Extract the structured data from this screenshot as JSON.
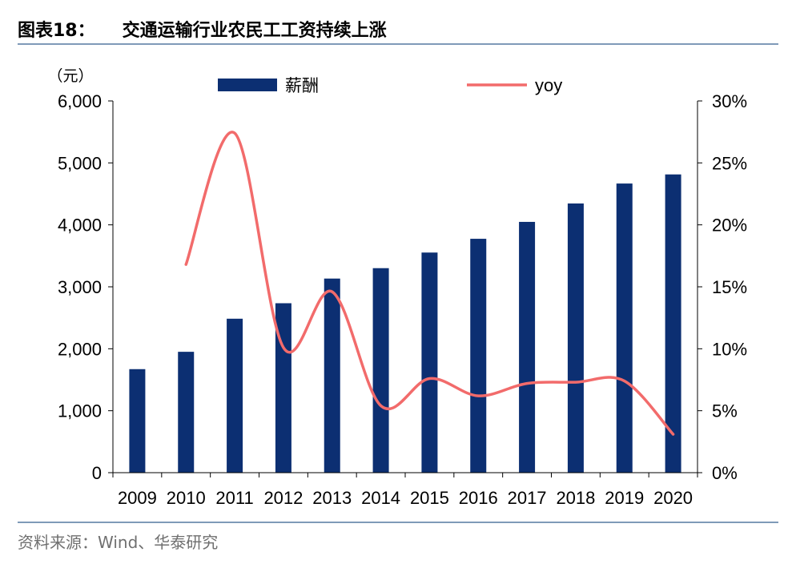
{
  "header": {
    "figure_label": "图表18：",
    "title": "交通运输行业农民工工资持续上涨"
  },
  "footer": {
    "source": "资料来源：Wind、华泰研究"
  },
  "colors": {
    "bar": "#0c2f72",
    "line": "#f26b6b",
    "rule": "#7f9ab8"
  },
  "chart_data": {
    "type": "bar",
    "categories": [
      "2009",
      "2010",
      "2011",
      "2012",
      "2013",
      "2014",
      "2015",
      "2016",
      "2017",
      "2018",
      "2019",
      "2020"
    ],
    "series": [
      {
        "name": "薪酬",
        "type": "bar",
        "axis": "left",
        "values": [
          1671,
          1951,
          2485,
          2735,
          3133,
          3301,
          3553,
          3775,
          4048,
          4345,
          4667,
          4814
        ]
      },
      {
        "name": "yoy",
        "type": "line",
        "axis": "right",
        "values": [
          null,
          16.8,
          27.4,
          10.1,
          14.6,
          5.4,
          7.6,
          6.2,
          7.2,
          7.3,
          7.4,
          3.1
        ]
      }
    ],
    "y_left": {
      "unit": "（元）",
      "min": 0,
      "max": 6000,
      "ticks": [
        "0",
        "1,000",
        "2,000",
        "3,000",
        "4,000",
        "5,000",
        "6,000"
      ]
    },
    "y_right": {
      "min": 0,
      "max": 30,
      "ticks": [
        "0%",
        "5%",
        "10%",
        "15%",
        "20%",
        "25%",
        "30%"
      ]
    },
    "legend": {
      "position": "top"
    },
    "grid": false
  }
}
